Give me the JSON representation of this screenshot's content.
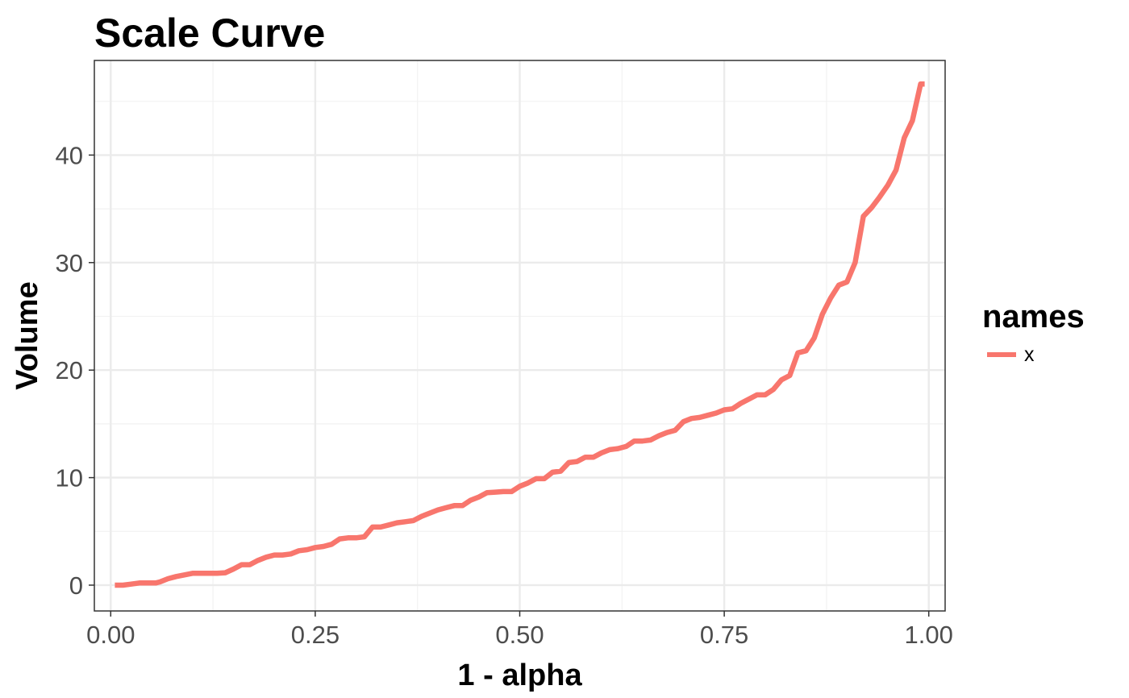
{
  "chart_data": {
    "type": "line",
    "title": "Scale Curve",
    "xlabel": "1 - alpha",
    "ylabel": "Volume",
    "xlim": [
      -0.02,
      1.02
    ],
    "ylim": [
      -2.4,
      48.8
    ],
    "x_ticks": [
      0.0,
      0.25,
      0.5,
      0.75,
      1.0
    ],
    "x_tick_labels": [
      "0.00",
      "0.25",
      "0.50",
      "0.75",
      "1.00"
    ],
    "x_minor_ticks": [
      0.125,
      0.375,
      0.625,
      0.875
    ],
    "y_ticks": [
      0,
      10,
      20,
      30,
      40
    ],
    "y_tick_labels": [
      "0",
      "10",
      "20",
      "30",
      "40"
    ],
    "y_minor_ticks": [
      5,
      15,
      25,
      35,
      45
    ],
    "grid": true,
    "legend": {
      "title": "names",
      "position": "right",
      "entries": [
        {
          "label": "x",
          "color": "#F8766D"
        }
      ]
    },
    "series": [
      {
        "name": "x",
        "color": "#F8766D",
        "x": [
          0.005,
          0.015,
          0.025,
          0.035,
          0.045,
          0.055,
          0.06,
          0.07,
          0.08,
          0.09,
          0.1,
          0.11,
          0.12,
          0.13,
          0.14,
          0.15,
          0.16,
          0.17,
          0.18,
          0.19,
          0.2,
          0.21,
          0.22,
          0.23,
          0.24,
          0.25,
          0.26,
          0.27,
          0.28,
          0.29,
          0.3,
          0.31,
          0.32,
          0.33,
          0.34,
          0.35,
          0.36,
          0.37,
          0.38,
          0.39,
          0.4,
          0.41,
          0.42,
          0.43,
          0.44,
          0.45,
          0.46,
          0.47,
          0.48,
          0.49,
          0.5,
          0.51,
          0.52,
          0.53,
          0.54,
          0.55,
          0.56,
          0.57,
          0.58,
          0.59,
          0.6,
          0.61,
          0.62,
          0.63,
          0.64,
          0.65,
          0.66,
          0.67,
          0.68,
          0.69,
          0.7,
          0.71,
          0.72,
          0.73,
          0.74,
          0.75,
          0.76,
          0.77,
          0.78,
          0.79,
          0.8,
          0.81,
          0.82,
          0.83,
          0.84,
          0.85,
          0.86,
          0.87,
          0.88,
          0.89,
          0.9,
          0.91,
          0.92,
          0.93,
          0.94,
          0.95,
          0.96,
          0.97,
          0.98,
          0.99,
          0.995
        ],
        "y": [
          0.0,
          0.0,
          0.1,
          0.2,
          0.2,
          0.2,
          0.3,
          0.6,
          0.8,
          0.95,
          1.1,
          1.1,
          1.1,
          1.1,
          1.15,
          1.5,
          1.9,
          1.9,
          2.3,
          2.6,
          2.8,
          2.8,
          2.9,
          3.2,
          3.3,
          3.5,
          3.6,
          3.8,
          4.3,
          4.4,
          4.4,
          4.5,
          5.4,
          5.4,
          5.6,
          5.8,
          5.9,
          6.0,
          6.4,
          6.7,
          7.0,
          7.2,
          7.4,
          7.4,
          7.9,
          8.2,
          8.6,
          8.65,
          8.7,
          8.7,
          9.2,
          9.5,
          9.9,
          9.9,
          10.5,
          10.6,
          11.4,
          11.5,
          11.9,
          11.9,
          12.3,
          12.6,
          12.7,
          12.9,
          13.4,
          13.4,
          13.5,
          13.9,
          14.2,
          14.4,
          15.2,
          15.5,
          15.6,
          15.8,
          16.0,
          16.3,
          16.4,
          16.9,
          17.3,
          17.7,
          17.7,
          18.2,
          19.1,
          19.5,
          21.6,
          21.8,
          23.0,
          25.2,
          26.7,
          27.9,
          28.2,
          30.0,
          34.3,
          35.1,
          36.1,
          37.2,
          38.6,
          41.6,
          43.2,
          46.6,
          46.6
        ]
      }
    ]
  }
}
